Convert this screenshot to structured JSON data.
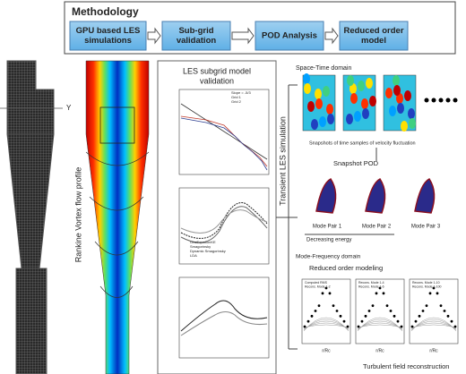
{
  "header": {
    "title": "Methodology",
    "steps": [
      {
        "lines": [
          "GPU based LES",
          "simulations"
        ]
      },
      {
        "lines": [
          "Sub-grid",
          "validation"
        ]
      },
      {
        "lines": [
          "POD Analysis"
        ]
      },
      {
        "lines": [
          "Reduced order",
          "model"
        ]
      }
    ]
  },
  "geometry": {
    "axis_label": "Y",
    "profile_label": "Rankine Vortex flow profile"
  },
  "validation": {
    "title_lines": [
      "LES subgrid model",
      "validation"
    ],
    "spectrum_legend": [
      "Slope = -5/3",
      "Grid 1",
      "Grid 2"
    ],
    "profile_legend": [
      "OneEquationKE",
      "Smagorinsky",
      "Dynamic Smagorinsky",
      "LDA"
    ]
  },
  "flow": {
    "transient_label": "Transient LES simulation",
    "space_time": "Space-Time domain",
    "snapshots_caption": "Snapshots of time samples of velocity fluctuation",
    "pod": "Snapshot POD",
    "modes": [
      "Mode Pair 1",
      "Mode Pair 2",
      "Mode Pair 3"
    ],
    "energy": "Decreasing energy",
    "mode_frequency": "Mode-Frequency domain",
    "rom": "Reduced order modeling",
    "rom_legends": [
      [
        "Computed RMS",
        "Recons. Mode 1-2"
      ],
      [
        "Recons. Mode 1-4",
        "Recons. Mode 1-6"
      ],
      [
        "Recons. Mode 1-10",
        "Recons. Mode 1-100"
      ]
    ],
    "x_label": "r/Rc",
    "reconstruction": "Turbulent field reconstruction"
  }
}
